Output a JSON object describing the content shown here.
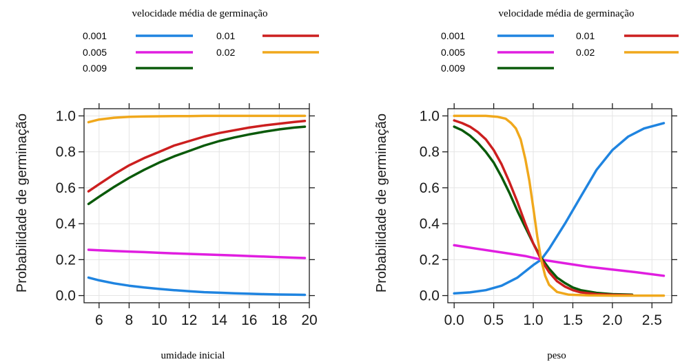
{
  "chart_data": [
    {
      "type": "line",
      "title": "",
      "xlabel": "umidade inicial",
      "ylabel": "Probabilidade de germinação",
      "xlim": [
        5,
        20
      ],
      "ylim": [
        -0.04,
        1.04
      ],
      "xticks": [
        6,
        8,
        10,
        12,
        14,
        16,
        18,
        20
      ],
      "xtick_labels": [
        "6",
        "8",
        "10",
        "12",
        "14",
        "16",
        "18",
        "20"
      ],
      "yticks": [
        0,
        0.2,
        0.4,
        0.6,
        0.8,
        1.0
      ],
      "ytick_labels": [
        "0.0",
        "0.2",
        "0.4",
        "0.6",
        "0.8",
        "1.0"
      ],
      "grid": true,
      "legend_title": "velocidade média de germinação",
      "legend_position": "top",
      "x": [
        5.3,
        6,
        7,
        8,
        9,
        10,
        11,
        12,
        13,
        14,
        15,
        16,
        17,
        18,
        19,
        19.7
      ],
      "series": [
        {
          "name": "0.001",
          "color": "#1f84e0",
          "values": [
            0.1,
            0.085,
            0.068,
            0.055,
            0.045,
            0.037,
            0.03,
            0.024,
            0.019,
            0.016,
            0.013,
            0.01,
            0.008,
            0.006,
            0.005,
            0.004
          ]
        },
        {
          "name": "0.005",
          "color": "#e01ee0",
          "values": [
            0.255,
            0.252,
            0.248,
            0.245,
            0.242,
            0.238,
            0.235,
            0.232,
            0.229,
            0.226,
            0.223,
            0.22,
            0.217,
            0.214,
            0.211,
            0.209
          ]
        },
        {
          "name": "0.009",
          "color": "#0a5a0a",
          "values": [
            0.51,
            0.55,
            0.605,
            0.655,
            0.7,
            0.74,
            0.775,
            0.805,
            0.835,
            0.86,
            0.88,
            0.897,
            0.912,
            0.925,
            0.935,
            0.94
          ]
        },
        {
          "name": "0.01",
          "color": "#cc1f1f",
          "values": [
            0.58,
            0.62,
            0.675,
            0.725,
            0.765,
            0.8,
            0.835,
            0.86,
            0.885,
            0.905,
            0.92,
            0.935,
            0.947,
            0.957,
            0.966,
            0.972
          ]
        },
        {
          "name": "0.02",
          "color": "#f0a81c",
          "values": [
            0.965,
            0.98,
            0.99,
            0.995,
            0.997,
            0.998,
            0.999,
            0.999,
            1.0,
            1.0,
            1.0,
            1.0,
            1.0,
            1.0,
            1.0,
            1.0
          ]
        }
      ]
    },
    {
      "type": "line",
      "title": "",
      "xlabel": "peso",
      "ylabel": "Probabilidade de germinação",
      "xlim": [
        -0.08,
        2.75
      ],
      "ylim": [
        -0.04,
        1.04
      ],
      "xticks": [
        0,
        0.5,
        1.0,
        1.5,
        2.0,
        2.5
      ],
      "xtick_labels": [
        "0.0",
        "0.5",
        "1.0",
        "1.5",
        "2.0",
        "2.5"
      ],
      "yticks": [
        0,
        0.2,
        0.4,
        0.6,
        0.8,
        1.0
      ],
      "ytick_labels": [
        "0.0",
        "0.2",
        "0.4",
        "0.6",
        "0.8",
        "1.0"
      ],
      "grid": true,
      "legend_title": "velocidade média de germinação",
      "legend_position": "top",
      "series": [
        {
          "name": "0.001",
          "color": "#1f84e0",
          "x": [
            0.0,
            0.2,
            0.4,
            0.6,
            0.8,
            1.0,
            1.1,
            1.2,
            1.4,
            1.6,
            1.8,
            2.0,
            2.2,
            2.4,
            2.65
          ],
          "values": [
            0.012,
            0.018,
            0.03,
            0.055,
            0.1,
            0.17,
            0.2,
            0.26,
            0.4,
            0.55,
            0.7,
            0.81,
            0.885,
            0.93,
            0.96
          ]
        },
        {
          "name": "0.005",
          "color": "#e01ee0",
          "x": [
            0.0,
            0.3,
            0.6,
            0.9,
            1.1,
            1.4,
            1.7,
            2.0,
            2.3,
            2.65
          ],
          "values": [
            0.28,
            0.26,
            0.24,
            0.22,
            0.2,
            0.18,
            0.16,
            0.145,
            0.13,
            0.11
          ]
        },
        {
          "name": "0.009",
          "color": "#0a5a0a",
          "x": [
            0.0,
            0.1,
            0.2,
            0.3,
            0.4,
            0.5,
            0.6,
            0.7,
            0.8,
            0.9,
            1.0,
            1.1,
            1.2,
            1.3,
            1.4,
            1.5,
            1.6,
            1.8,
            2.0,
            2.25
          ],
          "values": [
            0.94,
            0.92,
            0.89,
            0.85,
            0.8,
            0.74,
            0.66,
            0.57,
            0.47,
            0.38,
            0.29,
            0.21,
            0.15,
            0.1,
            0.07,
            0.045,
            0.03,
            0.015,
            0.008,
            0.005
          ]
        },
        {
          "name": "0.01",
          "color": "#cc1f1f",
          "x": [
            0.0,
            0.1,
            0.2,
            0.3,
            0.4,
            0.5,
            0.6,
            0.7,
            0.8,
            0.9,
            1.0,
            1.1,
            1.2,
            1.3,
            1.4,
            1.5,
            1.6,
            1.8,
            2.0,
            2.25
          ],
          "values": [
            0.975,
            0.96,
            0.94,
            0.91,
            0.87,
            0.81,
            0.73,
            0.63,
            0.52,
            0.4,
            0.29,
            0.2,
            0.13,
            0.08,
            0.05,
            0.03,
            0.018,
            0.008,
            0.004,
            0.002
          ]
        },
        {
          "name": "0.02",
          "color": "#f0a81c",
          "x": [
            0.0,
            0.2,
            0.4,
            0.55,
            0.65,
            0.72,
            0.78,
            0.84,
            0.9,
            0.95,
            1.0,
            1.05,
            1.1,
            1.15,
            1.2,
            1.3,
            1.45,
            1.7,
            2.0,
            2.65
          ],
          "values": [
            1.0,
            1.0,
            1.0,
            0.995,
            0.985,
            0.96,
            0.93,
            0.87,
            0.76,
            0.64,
            0.49,
            0.33,
            0.2,
            0.11,
            0.06,
            0.02,
            0.005,
            0.001,
            0.0,
            0.0
          ]
        }
      ]
    }
  ]
}
